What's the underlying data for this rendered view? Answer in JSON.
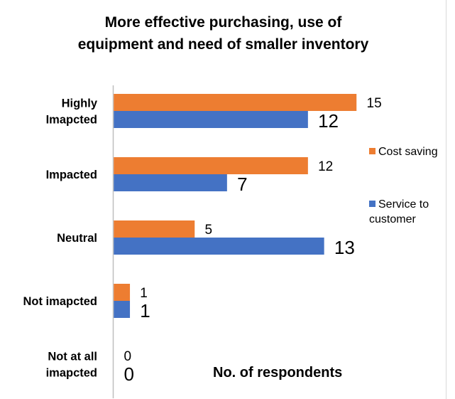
{
  "chart_data": {
    "type": "bar",
    "orientation": "horizontal",
    "title": [
      "More effective purchasing, use of",
      "equipment and need of smaller inventory"
    ],
    "categories": [
      "Highly Imapcted",
      "Impacted",
      "Neutral",
      "Not imapcted",
      "Not at all imapcted"
    ],
    "category_lines": [
      [
        "Highly",
        "Imapcted"
      ],
      [
        "Impacted"
      ],
      [
        "Neutral"
      ],
      [
        "Not imapcted"
      ],
      [
        "Not at all",
        "imapcted"
      ]
    ],
    "series": [
      {
        "name": "Cost saving",
        "color": "#ED7D31",
        "values": [
          15,
          12,
          5,
          1,
          0
        ]
      },
      {
        "name": "Service to customer",
        "color": "#4472C4",
        "values": [
          12,
          7,
          13,
          1,
          0
        ]
      }
    ],
    "xlabel": "No. of respondents",
    "xlim": [
      0,
      15
    ],
    "grid": false,
    "legend_position": "right"
  }
}
